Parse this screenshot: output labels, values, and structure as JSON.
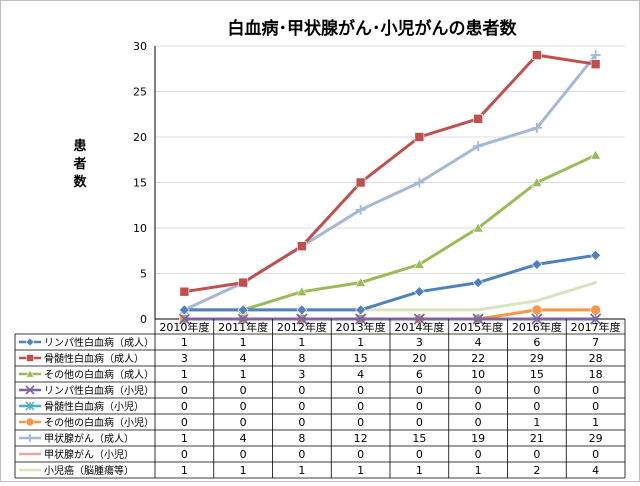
{
  "chart_data": {
    "type": "line",
    "title": "白血病･甲状腺がん･小児がんの患者数",
    "xlabel": "",
    "ylabel": "患者数",
    "ylim": [
      0,
      30
    ],
    "yticks": [
      "0",
      "5",
      "10",
      "15",
      "20",
      "25",
      "30"
    ],
    "grid": "horizontal",
    "legend": "table-below",
    "categories": [
      "2010年度",
      "2011年度",
      "2012年度",
      "2013年度",
      "2014年度",
      "2015年度",
      "2016年度",
      "2017年度"
    ],
    "series": [
      {
        "name": "リンパ性白血病（成人）",
        "color": "#4f81bd",
        "marker": "diamond",
        "values": [
          1,
          1,
          1,
          1,
          3,
          4,
          6,
          7
        ]
      },
      {
        "name": "骨髄性白血病（成人）",
        "color": "#c0504d",
        "marker": "square",
        "values": [
          3,
          4,
          8,
          15,
          20,
          22,
          29,
          28
        ]
      },
      {
        "name": "その他の白血病（成人）",
        "color": "#9bbb59",
        "marker": "triangle",
        "values": [
          1,
          1,
          3,
          4,
          6,
          10,
          15,
          18
        ]
      },
      {
        "name": "リンパ性白血病（小児）",
        "color": "#8064a2",
        "marker": "x",
        "values": [
          0,
          0,
          0,
          0,
          0,
          0,
          0,
          0
        ]
      },
      {
        "name": "骨髄性白血病（小児）",
        "color": "#4bacc6",
        "marker": "star",
        "values": [
          0,
          0,
          0,
          0,
          0,
          0,
          0,
          0
        ]
      },
      {
        "name": "その他の白血病（小児）",
        "color": "#f79646",
        "marker": "circle",
        "values": [
          0,
          0,
          0,
          0,
          0,
          0,
          1,
          1
        ]
      },
      {
        "name": "甲状腺がん（成人）",
        "color": "#a5b8d8",
        "marker": "plus",
        "values": [
          1,
          4,
          8,
          12,
          15,
          19,
          21,
          29
        ]
      },
      {
        "name": "甲状腺がん（小児）",
        "color": "#e3a8a6",
        "marker": "none",
        "values": [
          0,
          0,
          0,
          0,
          0,
          0,
          0,
          0
        ]
      },
      {
        "name": "小児癌（脳腫瘍等）",
        "color": "#d7e4bd",
        "marker": "none",
        "values": [
          1,
          1,
          1,
          1,
          1,
          1,
          2,
          4
        ]
      }
    ]
  }
}
